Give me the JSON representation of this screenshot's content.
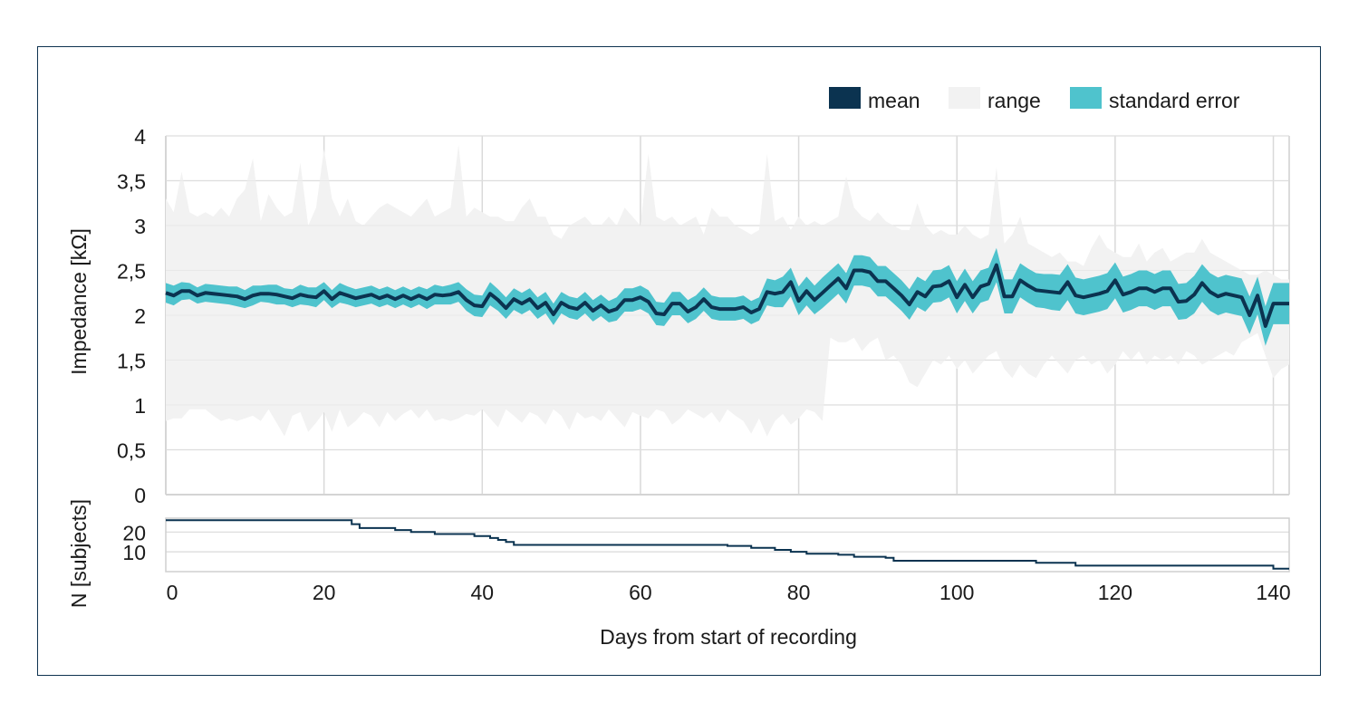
{
  "chart_data": {
    "type": "area",
    "x": [
      0,
      1,
      2,
      3,
      4,
      5,
      6,
      7,
      8,
      9,
      10,
      11,
      12,
      13,
      14,
      15,
      16,
      17,
      18,
      19,
      20,
      21,
      22,
      23,
      24,
      25,
      26,
      27,
      28,
      29,
      30,
      31,
      32,
      33,
      34,
      35,
      36,
      37,
      38,
      39,
      40,
      41,
      42,
      43,
      44,
      45,
      46,
      47,
      48,
      49,
      50,
      51,
      52,
      53,
      54,
      55,
      56,
      57,
      58,
      59,
      60,
      61,
      62,
      63,
      64,
      65,
      66,
      67,
      68,
      69,
      70,
      71,
      72,
      73,
      74,
      75,
      76,
      77,
      78,
      79,
      80,
      81,
      82,
      83,
      84,
      85,
      86,
      87,
      88,
      89,
      90,
      91,
      92,
      93,
      94,
      95,
      96,
      97,
      98,
      99,
      100,
      101,
      102,
      103,
      104,
      105,
      106,
      107,
      108,
      109,
      110,
      111,
      112,
      113,
      114,
      115,
      116,
      117,
      118,
      119,
      120,
      121,
      122,
      123,
      124,
      125,
      126,
      127,
      128,
      129,
      130,
      131,
      132,
      133,
      134,
      135,
      136,
      137,
      138,
      139,
      140,
      141,
      142
    ],
    "series": [
      {
        "name": "mean",
        "color": "#0b3350",
        "values": [
          2.25,
          2.22,
          2.27,
          2.27,
          2.22,
          2.25,
          2.24,
          2.23,
          2.22,
          2.21,
          2.18,
          2.22,
          2.24,
          2.24,
          2.23,
          2.21,
          2.19,
          2.23,
          2.21,
          2.2,
          2.27,
          2.18,
          2.25,
          2.22,
          2.19,
          2.21,
          2.23,
          2.19,
          2.22,
          2.18,
          2.22,
          2.18,
          2.22,
          2.18,
          2.23,
          2.22,
          2.23,
          2.26,
          2.17,
          2.11,
          2.1,
          2.24,
          2.17,
          2.08,
          2.18,
          2.13,
          2.18,
          2.08,
          2.14,
          2.01,
          2.14,
          2.09,
          2.07,
          2.14,
          2.05,
          2.11,
          2.04,
          2.07,
          2.17,
          2.17,
          2.2,
          2.15,
          2.02,
          2.01,
          2.13,
          2.13,
          2.04,
          2.09,
          2.18,
          2.09,
          2.07,
          2.07,
          2.07,
          2.09,
          2.03,
          2.07,
          2.26,
          2.24,
          2.26,
          2.37,
          2.16,
          2.27,
          2.17,
          2.25,
          2.33,
          2.41,
          2.3,
          2.5,
          2.5,
          2.48,
          2.38,
          2.38,
          2.3,
          2.22,
          2.12,
          2.26,
          2.21,
          2.32,
          2.33,
          2.38,
          2.2,
          2.34,
          2.2,
          2.32,
          2.35,
          2.56,
          2.21,
          2.21,
          2.39,
          2.33,
          2.28,
          2.27,
          2.26,
          2.25,
          2.37,
          2.22,
          2.2,
          2.22,
          2.24,
          2.27,
          2.39,
          2.23,
          2.26,
          2.3,
          2.3,
          2.26,
          2.3,
          2.3,
          2.15,
          2.16,
          2.23,
          2.36,
          2.26,
          2.21,
          2.24,
          2.22,
          2.2,
          2.0,
          2.22,
          1.88,
          2.13,
          2.13,
          2.13
        ]
      },
      {
        "name": "standard error",
        "color": "#4fc3cd",
        "upper": [
          2.36,
          2.33,
          2.37,
          2.36,
          2.31,
          2.35,
          2.34,
          2.33,
          2.32,
          2.32,
          2.28,
          2.33,
          2.33,
          2.34,
          2.34,
          2.3,
          2.29,
          2.34,
          2.31,
          2.31,
          2.37,
          2.28,
          2.36,
          2.32,
          2.29,
          2.31,
          2.33,
          2.29,
          2.32,
          2.28,
          2.32,
          2.28,
          2.32,
          2.29,
          2.34,
          2.32,
          2.34,
          2.37,
          2.29,
          2.23,
          2.22,
          2.37,
          2.29,
          2.2,
          2.3,
          2.25,
          2.3,
          2.2,
          2.26,
          2.13,
          2.26,
          2.21,
          2.19,
          2.26,
          2.17,
          2.23,
          2.16,
          2.2,
          2.3,
          2.3,
          2.33,
          2.28,
          2.15,
          2.14,
          2.26,
          2.26,
          2.17,
          2.22,
          2.31,
          2.22,
          2.2,
          2.2,
          2.2,
          2.22,
          2.16,
          2.2,
          2.41,
          2.39,
          2.43,
          2.53,
          2.32,
          2.43,
          2.33,
          2.42,
          2.5,
          2.58,
          2.47,
          2.67,
          2.67,
          2.65,
          2.55,
          2.55,
          2.47,
          2.39,
          2.29,
          2.43,
          2.38,
          2.5,
          2.51,
          2.56,
          2.38,
          2.52,
          2.38,
          2.5,
          2.53,
          2.75,
          2.4,
          2.4,
          2.58,
          2.52,
          2.47,
          2.46,
          2.46,
          2.45,
          2.57,
          2.42,
          2.4,
          2.42,
          2.44,
          2.47,
          2.59,
          2.43,
          2.46,
          2.5,
          2.5,
          2.46,
          2.5,
          2.5,
          2.35,
          2.36,
          2.44,
          2.57,
          2.47,
          2.42,
          2.45,
          2.43,
          2.41,
          2.21,
          2.43,
          2.1,
          2.36,
          2.36,
          2.36
        ],
        "lower": [
          2.14,
          2.11,
          2.17,
          2.18,
          2.13,
          2.15,
          2.14,
          2.13,
          2.12,
          2.1,
          2.08,
          2.11,
          2.15,
          2.14,
          2.12,
          2.12,
          2.09,
          2.12,
          2.11,
          2.09,
          2.17,
          2.08,
          2.14,
          2.12,
          2.09,
          2.11,
          2.13,
          2.09,
          2.12,
          2.08,
          2.12,
          2.08,
          2.12,
          2.07,
          2.12,
          2.12,
          2.12,
          2.15,
          2.05,
          1.99,
          1.98,
          2.11,
          2.05,
          1.96,
          2.06,
          2.01,
          2.06,
          1.96,
          2.02,
          1.89,
          2.02,
          1.97,
          1.95,
          2.02,
          1.93,
          1.99,
          1.92,
          1.94,
          2.04,
          2.04,
          2.07,
          2.02,
          1.89,
          1.88,
          2.0,
          2.0,
          1.91,
          1.96,
          2.05,
          1.96,
          1.94,
          1.94,
          1.94,
          1.96,
          1.9,
          1.94,
          2.11,
          2.09,
          2.09,
          2.21,
          2.0,
          2.11,
          2.01,
          2.08,
          2.16,
          2.24,
          2.13,
          2.33,
          2.33,
          2.31,
          2.21,
          2.21,
          2.13,
          2.05,
          1.95,
          2.09,
          2.04,
          2.14,
          2.15,
          2.2,
          2.02,
          2.16,
          2.02,
          2.14,
          2.17,
          2.37,
          2.02,
          2.02,
          2.2,
          2.14,
          2.09,
          2.08,
          2.06,
          2.05,
          2.17,
          2.02,
          2.0,
          2.02,
          2.04,
          2.07,
          2.19,
          2.03,
          2.06,
          2.1,
          2.1,
          2.06,
          2.1,
          2.1,
          1.95,
          1.96,
          2.02,
          2.15,
          2.05,
          2.0,
          2.03,
          2.01,
          1.99,
          1.79,
          2.01,
          1.66,
          1.9,
          1.9,
          1.9
        ]
      },
      {
        "name": "range",
        "color": "#f2f2f2",
        "upper": [
          3.3,
          3.15,
          3.6,
          3.15,
          3.1,
          3.15,
          3.1,
          3.2,
          3.1,
          3.3,
          3.4,
          3.75,
          3.05,
          3.35,
          3.2,
          3.1,
          3.15,
          3.7,
          3.0,
          3.2,
          3.85,
          3.3,
          3.1,
          3.3,
          3.05,
          3.0,
          3.1,
          3.2,
          3.25,
          3.2,
          3.15,
          3.1,
          3.2,
          3.3,
          3.1,
          3.15,
          3.2,
          3.9,
          3.1,
          3.2,
          3.15,
          3.1,
          3.1,
          3.05,
          3.05,
          3.2,
          3.3,
          3.1,
          3.1,
          2.9,
          2.85,
          3.0,
          3.05,
          3.1,
          3.0,
          3.0,
          3.1,
          3.0,
          3.2,
          3.1,
          3.0,
          3.8,
          3.1,
          3.05,
          3.1,
          3.0,
          3.05,
          3.1,
          2.9,
          3.2,
          3.1,
          3.1,
          3.0,
          2.95,
          2.9,
          2.95,
          3.8,
          3.05,
          3.1,
          2.95,
          3.1,
          3.0,
          3.05,
          3.0,
          3.05,
          3.1,
          3.55,
          3.2,
          3.1,
          3.05,
          3.15,
          3.05,
          3.0,
          2.95,
          2.95,
          3.25,
          3.0,
          2.9,
          2.95,
          2.9,
          2.9,
          3.0,
          2.9,
          2.85,
          2.9,
          3.65,
          2.8,
          2.9,
          3.1,
          2.8,
          2.75,
          2.7,
          2.65,
          2.7,
          2.6,
          2.6,
          2.55,
          2.75,
          2.9,
          2.75,
          2.7,
          2.65,
          2.65,
          2.8,
          2.6,
          2.7,
          2.75,
          2.6,
          2.65,
          2.7,
          2.7,
          2.85,
          2.7,
          2.65,
          2.6,
          2.55,
          2.5,
          2.45,
          2.45,
          2.5,
          2.45,
          2.4,
          2.4
        ],
        "lower": [
          0.82,
          0.85,
          0.85,
          0.95,
          0.95,
          0.95,
          0.88,
          0.82,
          0.85,
          0.82,
          0.85,
          0.88,
          0.82,
          0.95,
          0.8,
          0.65,
          0.88,
          0.92,
          0.7,
          0.8,
          0.92,
          0.7,
          0.95,
          0.75,
          0.82,
          0.92,
          0.88,
          0.75,
          0.92,
          0.82,
          0.9,
          0.95,
          0.85,
          0.95,
          0.82,
          0.85,
          0.82,
          0.85,
          0.9,
          0.88,
          0.95,
          0.85,
          0.75,
          0.95,
          0.88,
          0.8,
          0.92,
          0.88,
          0.78,
          0.95,
          0.88,
          0.72,
          0.92,
          0.85,
          0.88,
          0.82,
          0.95,
          0.85,
          0.75,
          0.92,
          0.88,
          0.85,
          0.95,
          0.92,
          0.78,
          0.85,
          0.95,
          0.9,
          0.85,
          0.92,
          0.8,
          0.95,
          0.88,
          0.82,
          0.68,
          0.85,
          0.65,
          0.82,
          0.9,
          0.78,
          0.85,
          0.95,
          0.92,
          0.82,
          1.75,
          1.7,
          1.7,
          1.75,
          1.6,
          1.7,
          1.75,
          1.5,
          1.55,
          1.45,
          1.25,
          1.2,
          1.35,
          1.5,
          1.45,
          1.55,
          1.4,
          1.5,
          1.35,
          1.45,
          1.55,
          1.6,
          1.4,
          1.3,
          1.45,
          1.35,
          1.3,
          1.45,
          1.55,
          1.45,
          1.35,
          1.5,
          1.55,
          1.45,
          1.5,
          1.35,
          1.45,
          1.6,
          1.5,
          1.6,
          1.45,
          1.55,
          1.5,
          1.55,
          1.45,
          1.6,
          1.55,
          1.45,
          1.5,
          1.55,
          1.6,
          1.55,
          1.7,
          1.75,
          1.8,
          1.55,
          1.3,
          1.4,
          1.45
        ]
      }
    ],
    "xlabel": "Days from start of recording",
    "ylabel": "Impedance [kΩ]",
    "ylim": [
      0,
      4
    ],
    "yticks": [
      "0",
      "0,5",
      "1",
      "1,5",
      "2",
      "2,5",
      "3",
      "3,5",
      "4"
    ],
    "yticks_values": [
      0,
      0.5,
      1,
      1.5,
      2,
      2.5,
      3,
      3.5,
      4
    ],
    "xticks": [
      "0",
      "20",
      "40",
      "60",
      "80",
      "100",
      "120",
      "140"
    ],
    "xticks_values": [
      0,
      20,
      40,
      60,
      80,
      100,
      120,
      140
    ],
    "xlim": [
      0,
      142
    ],
    "grid": true,
    "legend": {
      "placement": "top-right",
      "entries": [
        {
          "label": "mean",
          "color": "#0b3350"
        },
        {
          "label": "range",
          "color": "#f2f2f2"
        },
        {
          "label": "standard error",
          "color": "#4fc3cd"
        }
      ]
    },
    "subplot": {
      "type": "step",
      "ylabel": "N [subjects]",
      "ylim": [
        0,
        27
      ],
      "yticks": [
        "10",
        "20"
      ],
      "yticks_values": [
        10,
        20
      ],
      "steps": [
        {
          "x": 0,
          "n": 26
        },
        {
          "x": 23.5,
          "n": 24
        },
        {
          "x": 24.5,
          "n": 22
        },
        {
          "x": 29,
          "n": 21
        },
        {
          "x": 31,
          "n": 20
        },
        {
          "x": 34,
          "n": 19
        },
        {
          "x": 39,
          "n": 18
        },
        {
          "x": 41,
          "n": 17
        },
        {
          "x": 42,
          "n": 16
        },
        {
          "x": 43,
          "n": 15
        },
        {
          "x": 44,
          "n": 13.5
        },
        {
          "x": 71,
          "n": 13
        },
        {
          "x": 74,
          "n": 12
        },
        {
          "x": 77,
          "n": 11
        },
        {
          "x": 79,
          "n": 10
        },
        {
          "x": 81,
          "n": 9
        },
        {
          "x": 85,
          "n": 8.5
        },
        {
          "x": 87,
          "n": 7.5
        },
        {
          "x": 91,
          "n": 7
        },
        {
          "x": 92,
          "n": 5.5
        },
        {
          "x": 110,
          "n": 4.5
        },
        {
          "x": 115,
          "n": 3
        },
        {
          "x": 140,
          "n": 1.5
        },
        {
          "x": 142.5,
          "n": 1.5
        }
      ]
    }
  }
}
